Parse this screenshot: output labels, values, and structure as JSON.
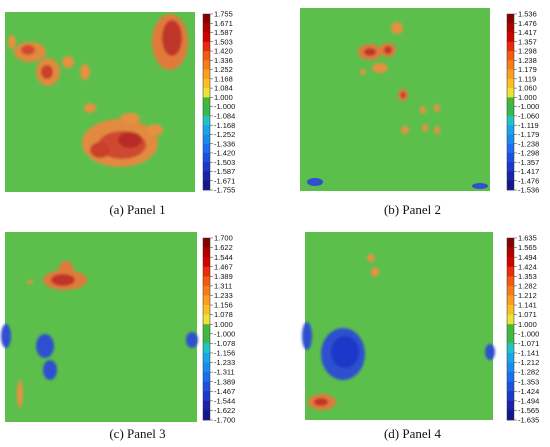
{
  "panels": [
    {
      "caption": "(a) Panel 1",
      "scale": [
        "1.755",
        "1.671",
        "1.587",
        "1.503",
        "1.420",
        "1.336",
        "1.252",
        "1.168",
        "1.084",
        "1.000",
        "-1.000",
        "-1.084",
        "-1.168",
        "-1.252",
        "-1.336",
        "-1.420",
        "-1.503",
        "-1.587",
        "-1.671",
        "-1.755"
      ]
    },
    {
      "caption": "(b) Panel 2",
      "scale": [
        "1.536",
        "1.476",
        "1.417",
        "1.357",
        "1.298",
        "1.238",
        "1.179",
        "1.119",
        "1.060",
        "1.000",
        "-1.000",
        "-1.060",
        "-1.119",
        "-1.179",
        "-1.238",
        "-1.298",
        "-1.357",
        "-1.417",
        "-1.476",
        "-1.536"
      ]
    },
    {
      "caption": "(c) Panel 3",
      "scale": [
        "1.700",
        "1.622",
        "1.544",
        "1.467",
        "1.389",
        "1.311",
        "1.233",
        "1.156",
        "1.078",
        "1.000",
        "-1.000",
        "-1.078",
        "-1.156",
        "-1.233",
        "-1.311",
        "-1.389",
        "-1.467",
        "-1.544",
        "-1.622",
        "-1.700"
      ]
    },
    {
      "caption": "(d) Panel 4",
      "scale": [
        "1.635",
        "1.565",
        "1.494",
        "1.424",
        "1.353",
        "1.282",
        "1.212",
        "1.141",
        "1.071",
        "1.000",
        "-1.000",
        "-1.071",
        "-1.141",
        "-1.212",
        "-1.282",
        "-1.353",
        "-1.424",
        "-1.494",
        "-1.565",
        "-1.635"
      ]
    }
  ],
  "colors": {
    "background": "#5cbf4c",
    "scale": [
      "#8b0000",
      "#b00000",
      "#d40000",
      "#e82a0a",
      "#f25a10",
      "#f77d1a",
      "#f9a020",
      "#f7c028",
      "#eee034",
      "#44b83c",
      "#3cb84a",
      "#20c4c8",
      "#18a8e8",
      "#1a8cf0",
      "#1c6ef0",
      "#1c50e0",
      "#1c38c8",
      "#1a22a8",
      "#141690",
      "#0c0c70"
    ]
  }
}
